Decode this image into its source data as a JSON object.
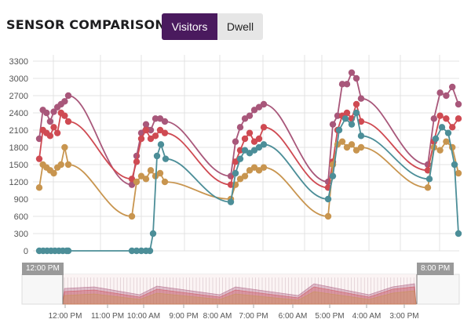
{
  "header": {
    "title": "SENSOR COMPARISON",
    "tabs": [
      {
        "label": "Visitors",
        "active": true
      },
      {
        "label": "Dwell",
        "active": false
      }
    ]
  },
  "navigator": {
    "start_label": "12:00 PM",
    "end_label": "8:00 PM"
  },
  "colors": {
    "series": [
      "#a8577a",
      "#cf4a52",
      "#c8954f",
      "#4c8e98"
    ],
    "grid": "#e3e3e3",
    "axis_text": "#555555"
  },
  "chart_data": {
    "type": "line",
    "title": "",
    "xlabel": "",
    "ylabel": "",
    "ylim": [
      0,
      3300
    ],
    "yticks": [
      0,
      300,
      600,
      900,
      1200,
      1500,
      1800,
      2100,
      2400,
      2700,
      3000,
      3300
    ],
    "grid": true,
    "x_axis_labels": [
      "12:00 PM",
      "11:00 PM",
      "10:00 AM",
      "9:00 PM",
      "8:00 AM",
      "7:00 PM",
      "6:00 AM",
      "5:00 PM",
      "4:00 AM",
      "3:00 PM"
    ],
    "series": [
      {
        "segments": [
          {
            "points": [
              [
                0,
                1950
              ],
              [
                1,
                2450
              ],
              [
                2,
                2400
              ],
              [
                3,
                2250
              ],
              [
                4,
                2420
              ],
              [
                5,
                2500
              ],
              [
                6,
                2550
              ],
              [
                7,
                2600
              ],
              [
                8,
                2700
              ]
            ]
          },
          {
            "points": [
              [
                0,
                1150
              ],
              [
                1,
                1650
              ],
              [
                2,
                2050
              ],
              [
                3,
                2200
              ],
              [
                4,
                2100
              ],
              [
                5,
                2300
              ],
              [
                6,
                2300
              ],
              [
                7,
                2250
              ]
            ]
          },
          {
            "points": [
              [
                0,
                1300
              ],
              [
                1,
                1900
              ],
              [
                2,
                2150
              ],
              [
                3,
                2300
              ],
              [
                4,
                2350
              ],
              [
                5,
                2450
              ],
              [
                6,
                2500
              ],
              [
                7,
                2550
              ]
            ]
          },
          {
            "points": [
              [
                0,
                1200
              ],
              [
                1,
                2200
              ],
              [
                2,
                2350
              ],
              [
                3,
                2900
              ],
              [
                4,
                2900
              ],
              [
                5,
                3100
              ],
              [
                6,
                3000
              ],
              [
                7,
                2650
              ]
            ]
          },
          {
            "points": [
              [
                0,
                1500
              ],
              [
                1,
                2300
              ],
              [
                2,
                2750
              ],
              [
                3,
                2700
              ],
              [
                4,
                2850
              ],
              [
                5,
                2550
              ]
            ]
          }
        ]
      },
      {
        "segments": [
          {
            "points": [
              [
                0,
                1600
              ],
              [
                1,
                2100
              ],
              [
                2,
                2050
              ],
              [
                3,
                2000
              ],
              [
                4,
                2150
              ],
              [
                5,
                2050
              ],
              [
                6,
                2400
              ],
              [
                7,
                2350
              ],
              [
                8,
                2250
              ]
            ]
          },
          {
            "points": [
              [
                0,
                1250
              ],
              [
                1,
                1550
              ],
              [
                2,
                1950
              ],
              [
                3,
                2100
              ],
              [
                4,
                1950
              ],
              [
                5,
                2000
              ],
              [
                6,
                2100
              ],
              [
                7,
                2050
              ]
            ]
          },
          {
            "points": [
              [
                0,
                1150
              ],
              [
                1,
                1550
              ],
              [
                2,
                1750
              ],
              [
                3,
                1950
              ],
              [
                4,
                2050
              ],
              [
                5,
                1900
              ],
              [
                6,
                1950
              ],
              [
                7,
                2150
              ]
            ]
          },
          {
            "points": [
              [
                0,
                1100
              ],
              [
                1,
                1550
              ],
              [
                2,
                2100
              ],
              [
                3,
                2350
              ],
              [
                4,
                2400
              ],
              [
                5,
                2300
              ],
              [
                6,
                2550
              ],
              [
                7,
                2250
              ]
            ]
          },
          {
            "points": [
              [
                0,
                1400
              ],
              [
                1,
                1900
              ],
              [
                2,
                2350
              ],
              [
                3,
                2300
              ],
              [
                4,
                2150
              ],
              [
                5,
                2300
              ]
            ]
          }
        ]
      },
      {
        "segments": [
          {
            "points": [
              [
                0,
                1100
              ],
              [
                1,
                1500
              ],
              [
                2,
                1450
              ],
              [
                3,
                1400
              ],
              [
                4,
                1350
              ],
              [
                5,
                1450
              ],
              [
                6,
                1500
              ],
              [
                7,
                1800
              ],
              [
                8,
                1500
              ]
            ]
          },
          {
            "points": [
              [
                0,
                600
              ],
              [
                1,
                1200
              ],
              [
                2,
                1300
              ],
              [
                3,
                1250
              ],
              [
                4,
                1400
              ],
              [
                5,
                1300
              ],
              [
                6,
                1350
              ],
              [
                7,
                1200
              ]
            ]
          },
          {
            "points": [
              [
                0,
                900
              ],
              [
                1,
                1150
              ],
              [
                2,
                1250
              ],
              [
                3,
                1300
              ],
              [
                4,
                1400
              ],
              [
                5,
                1450
              ],
              [
                6,
                1400
              ],
              [
                7,
                1450
              ]
            ]
          },
          {
            "points": [
              [
                0,
                600
              ],
              [
                1,
                1500
              ],
              [
                2,
                1850
              ],
              [
                3,
                1900
              ],
              [
                4,
                1800
              ],
              [
                5,
                1850
              ],
              [
                6,
                1750
              ],
              [
                7,
                1800
              ]
            ]
          },
          {
            "points": [
              [
                0,
                1100
              ],
              [
                1,
                1800
              ],
              [
                2,
                1750
              ],
              [
                3,
                1900
              ],
              [
                4,
                1800
              ],
              [
                5,
                1350
              ]
            ]
          }
        ]
      },
      {
        "segments": [
          {
            "points": [
              [
                0,
                0
              ],
              [
                1,
                0
              ],
              [
                2,
                0
              ],
              [
                3,
                0
              ],
              [
                4,
                0
              ],
              [
                5,
                0
              ],
              [
                6,
                0
              ],
              [
                7,
                0
              ],
              [
                8,
                0
              ]
            ]
          },
          {
            "points": [
              [
                0,
                0
              ],
              [
                1,
                0
              ],
              [
                2,
                0
              ],
              [
                3,
                0
              ],
              [
                4,
                0
              ],
              [
                5,
                300
              ],
              [
                6,
                1650
              ],
              [
                7,
                1850
              ],
              [
                8,
                1600
              ]
            ]
          },
          {
            "points": [
              [
                0,
                850
              ],
              [
                1,
                1350
              ],
              [
                2,
                1600
              ],
              [
                3,
                1750
              ],
              [
                4,
                1700
              ],
              [
                5,
                1750
              ],
              [
                6,
                1800
              ],
              [
                7,
                1850
              ]
            ]
          },
          {
            "points": [
              [
                0,
                900
              ],
              [
                1,
                1300
              ],
              [
                2,
                2100
              ],
              [
                3,
                2300
              ],
              [
                4,
                2200
              ],
              [
                5,
                2400
              ],
              [
                6,
                2000
              ]
            ]
          },
          {
            "points": [
              [
                0,
                1250
              ],
              [
                1,
                1950
              ],
              [
                2,
                2150
              ],
              [
                3,
                2050
              ],
              [
                4,
                1500
              ],
              [
                5,
                300
              ]
            ]
          }
        ]
      }
    ]
  }
}
